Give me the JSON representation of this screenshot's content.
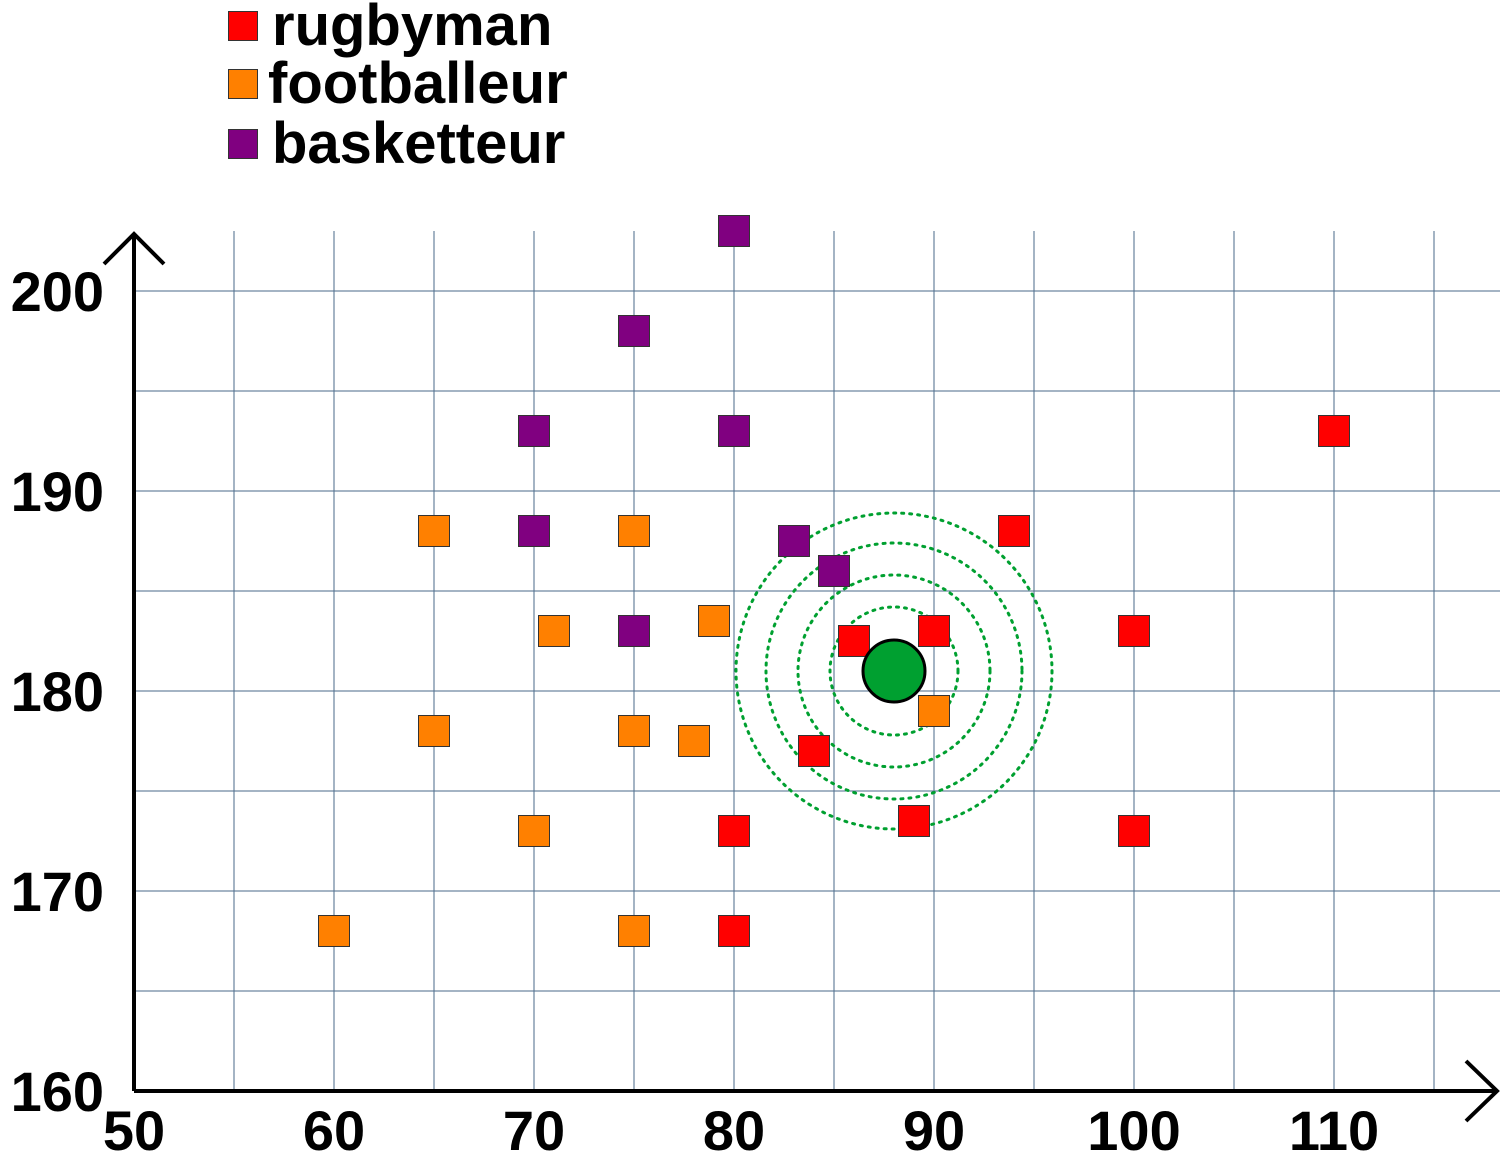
{
  "chart_data": {
    "type": "scatter",
    "title": "",
    "xlabel": "",
    "ylabel": "",
    "xlim": [
      50,
      115
    ],
    "ylim": [
      160,
      203
    ],
    "x_ticks": [
      50,
      60,
      70,
      80,
      90,
      100,
      110
    ],
    "y_ticks": [
      160,
      170,
      180,
      190,
      200
    ],
    "grid": true,
    "grid_color": "#4a6a8a",
    "legend_position": "top-left",
    "series": [
      {
        "name": "rugbyman",
        "color": "#ff0000",
        "marker": "square",
        "points": [
          [
            80,
            168
          ],
          [
            80,
            173
          ],
          [
            84,
            177
          ],
          [
            86,
            182.5
          ],
          [
            89,
            173.5
          ],
          [
            90,
            183
          ],
          [
            94,
            188
          ],
          [
            100,
            183
          ],
          [
            100,
            173
          ],
          [
            110,
            193
          ]
        ]
      },
      {
        "name": "footballeur",
        "color": "#ff8000",
        "marker": "square",
        "points": [
          [
            60,
            168
          ],
          [
            65,
            178
          ],
          [
            65,
            188
          ],
          [
            70,
            173
          ],
          [
            71,
            183
          ],
          [
            75,
            168
          ],
          [
            75,
            178
          ],
          [
            75,
            188
          ],
          [
            78,
            177.5
          ],
          [
            79,
            183.5
          ],
          [
            90,
            179
          ]
        ]
      },
      {
        "name": "basketteur",
        "color": "#800080",
        "marker": "square",
        "points": [
          [
            70,
            193
          ],
          [
            70,
            188
          ],
          [
            75,
            198
          ],
          [
            75,
            183
          ],
          [
            80,
            203
          ],
          [
            80,
            193
          ],
          [
            83,
            187.5
          ],
          [
            85,
            186
          ]
        ]
      }
    ],
    "query_point": {
      "x": 88,
      "y": 181,
      "color": "#00a030",
      "neighbour_circle_radii": [
        3.2,
        4.8,
        6.4,
        7.9
      ]
    }
  }
}
